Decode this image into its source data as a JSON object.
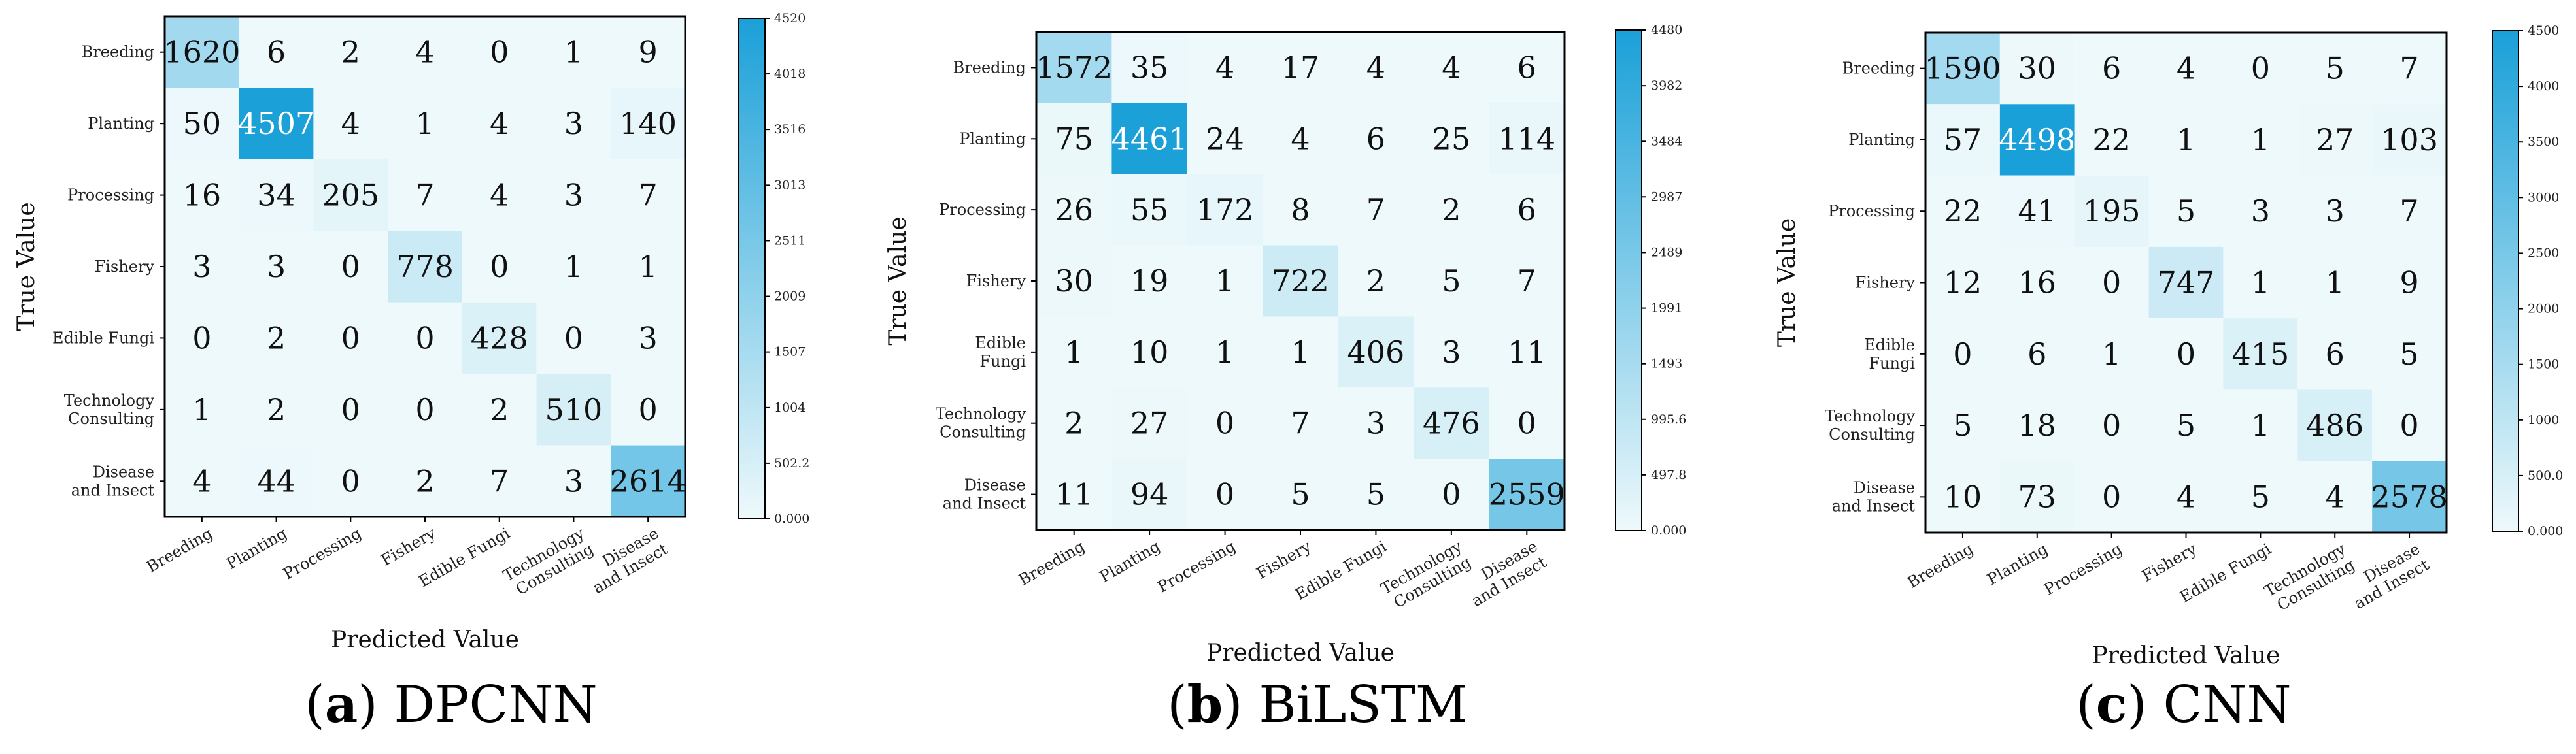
{
  "colors": {
    "low": "#eef9fb",
    "high": "#1aa0d8",
    "text_dark": "#111111",
    "text_light": "#ffffff"
  },
  "chart_data": [
    {
      "type": "heatmap",
      "title": "",
      "caption_label": "a",
      "caption_name": "DPCNN",
      "xlabel": "Predicted Value",
      "ylabel": "True Value",
      "rows": [
        "Breeding",
        "Planting",
        "Processing",
        "Fishery",
        "Edible Fungi",
        "Technology Consulting",
        "Disease and Insect"
      ],
      "cols": [
        "Breeding",
        "Planting",
        "Processing",
        "Fishery",
        "Edible Fungi",
        "Technology Consulting",
        "Disease and Insect"
      ],
      "row_tick_labels": [
        [
          "Breeding"
        ],
        [
          "Planting"
        ],
        [
          "Processing"
        ],
        [
          "Fishery"
        ],
        [
          "Edible Fungi"
        ],
        [
          "Technology",
          "Consulting"
        ],
        [
          "Disease",
          "and Insect"
        ]
      ],
      "col_tick_labels": [
        [
          "Breeding"
        ],
        [
          "Planting"
        ],
        [
          "Processing"
        ],
        [
          "Fishery"
        ],
        [
          "Edible Fungi"
        ],
        [
          "Technology",
          "Consulting"
        ],
        [
          "Disease",
          "and Insect"
        ]
      ],
      "matrix": [
        [
          1620,
          6,
          2,
          4,
          0,
          1,
          9
        ],
        [
          50,
          4507,
          4,
          1,
          4,
          3,
          140
        ],
        [
          16,
          34,
          205,
          7,
          4,
          3,
          7
        ],
        [
          3,
          3,
          0,
          778,
          0,
          1,
          1
        ],
        [
          0,
          2,
          0,
          0,
          428,
          0,
          3
        ],
        [
          1,
          2,
          0,
          0,
          2,
          510,
          0
        ],
        [
          4,
          44,
          0,
          2,
          7,
          3,
          2614
        ]
      ],
      "colorbar": {
        "range": [
          0,
          4520
        ],
        "ticks": [
          0,
          502.2,
          1004,
          1507,
          2009,
          2511,
          3013,
          3516,
          4018,
          4520
        ],
        "tick_labels": [
          "0.000",
          "502.2",
          "1004",
          "1507",
          "2009",
          "2511",
          "3013",
          "3516",
          "4018",
          "4520"
        ]
      }
    },
    {
      "type": "heatmap",
      "title": "",
      "caption_label": "b",
      "caption_name": "BiLSTM",
      "xlabel": "Predicted Value",
      "ylabel": "True Value",
      "rows": [
        "Breeding",
        "Planting",
        "Processing",
        "Fishery",
        "Edible Fungi",
        "Technology Consulting",
        "Disease and Insect"
      ],
      "cols": [
        "Breeding",
        "Planting",
        "Processing",
        "Fishery",
        "Edible Fungi",
        "Technology Consulting",
        "Disease and Insect"
      ],
      "row_tick_labels": [
        [
          "Breeding"
        ],
        [
          "Planting"
        ],
        [
          "Processing"
        ],
        [
          "Fishery"
        ],
        [
          "Edible",
          "Fungi"
        ],
        [
          "Technology",
          "Consulting"
        ],
        [
          "Disease",
          "and Insect"
        ]
      ],
      "col_tick_labels": [
        [
          "Breeding"
        ],
        [
          "Planting"
        ],
        [
          "Processing"
        ],
        [
          "Fishery"
        ],
        [
          "Edible Fungi"
        ],
        [
          "Technology",
          "Consulting"
        ],
        [
          "Disease",
          "and Insect"
        ]
      ],
      "matrix": [
        [
          1572,
          35,
          4,
          17,
          4,
          4,
          6
        ],
        [
          75,
          4461,
          24,
          4,
          6,
          25,
          114
        ],
        [
          26,
          55,
          172,
          8,
          7,
          2,
          6
        ],
        [
          30,
          19,
          1,
          722,
          2,
          5,
          7
        ],
        [
          1,
          10,
          1,
          1,
          406,
          3,
          11
        ],
        [
          2,
          27,
          0,
          7,
          3,
          476,
          0
        ],
        [
          11,
          94,
          0,
          5,
          5,
          0,
          2559
        ]
      ],
      "colorbar": {
        "range": [
          0,
          4480
        ],
        "ticks": [
          0,
          497.8,
          995.6,
          1493,
          1991,
          2489,
          2987,
          3484,
          3982,
          4480
        ],
        "tick_labels": [
          "0.000",
          "497.8",
          "995.6",
          "1493",
          "1991",
          "2489",
          "2987",
          "3484",
          "3982",
          "4480"
        ]
      }
    },
    {
      "type": "heatmap",
      "title": "",
      "caption_label": "c",
      "caption_name": "CNN",
      "xlabel": "Predicted Value",
      "ylabel": "True Value",
      "rows": [
        "Breeding",
        "Planting",
        "Processing",
        "Fishery",
        "Edible Fungi",
        "Technology Consulting",
        "Disease and Insect"
      ],
      "cols": [
        "Breeding",
        "Planting",
        "Processing",
        "Fishery",
        "Edible Fungi",
        "Technology Consulting",
        "Disease and Insect"
      ],
      "row_tick_labels": [
        [
          "Breeding"
        ],
        [
          "Planting"
        ],
        [
          "Processing"
        ],
        [
          "Fishery"
        ],
        [
          "Edible",
          "Fungi"
        ],
        [
          "Technology",
          "Consulting"
        ],
        [
          "Disease",
          "and Insect"
        ]
      ],
      "col_tick_labels": [
        [
          "Breeding"
        ],
        [
          "Planting"
        ],
        [
          "Processing"
        ],
        [
          "Fishery"
        ],
        [
          "Edible Fungi"
        ],
        [
          "Technology",
          "Consulting"
        ],
        [
          "Disease",
          "and Insect"
        ]
      ],
      "matrix": [
        [
          1590,
          30,
          6,
          4,
          0,
          5,
          7
        ],
        [
          57,
          4498,
          22,
          1,
          1,
          27,
          103
        ],
        [
          22,
          41,
          195,
          5,
          3,
          3,
          7
        ],
        [
          12,
          16,
          0,
          747,
          1,
          1,
          9
        ],
        [
          0,
          6,
          1,
          0,
          415,
          6,
          5
        ],
        [
          5,
          18,
          0,
          5,
          1,
          486,
          0
        ],
        [
          10,
          73,
          0,
          4,
          5,
          4,
          2578
        ]
      ],
      "colorbar": {
        "range": [
          0,
          4500
        ],
        "ticks": [
          0,
          500,
          1000,
          1500,
          2000,
          2500,
          3000,
          3500,
          4000,
          4500
        ],
        "tick_labels": [
          "0.000",
          "500.0",
          "1000",
          "1500",
          "2000",
          "2500",
          "3000",
          "3500",
          "4000",
          "4500"
        ]
      }
    }
  ]
}
